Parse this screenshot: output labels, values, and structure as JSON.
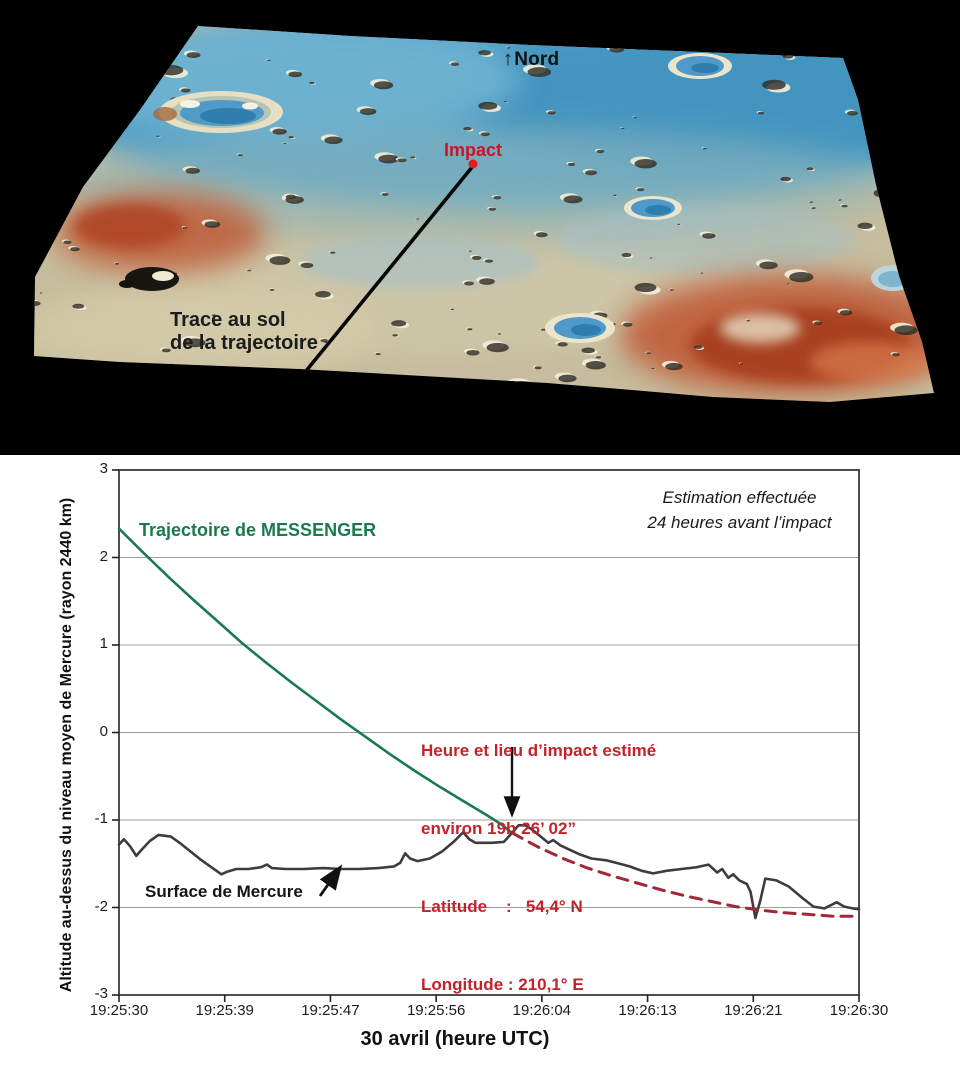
{
  "terrain": {
    "nord_arrow": "↑",
    "nord_label": "Nord",
    "impact_label": "Impact",
    "trace_line1": "Trace au sol",
    "trace_line2": "de la trajectoire",
    "colors": {
      "background": "#000000",
      "plains_blue": "#57a2c7",
      "highlands_tan": "#c6bd9e",
      "ridge_red": "#c05c39",
      "crater_floor_blue": "#4f9ac8",
      "impact_marker_red": "#e31b1b",
      "ground_track_black": "#050505"
    }
  },
  "chart_data": {
    "type": "line",
    "title": "",
    "xlabel": "30 avril (heure UTC)",
    "ylabel": "Altitude au-dessus du niveau moyen de Mercure (rayon 2440 km)",
    "x_tick_labels": [
      "19:25:30",
      "19:25:39",
      "19:25:47",
      "19:25:56",
      "19:26:04",
      "19:26:13",
      "19:26:21",
      "19:26:30"
    ],
    "x_range_seconds": [
      0,
      60
    ],
    "ylim": [
      -3,
      3
    ],
    "y_ticks": [
      3,
      2,
      1,
      0,
      -1,
      -2,
      -3
    ],
    "grid_values": [
      2,
      1,
      0,
      -1,
      -2
    ],
    "grid_color": "#9f9f9f",
    "legend_position": "none",
    "series": [
      {
        "id": "trajectoire-messenger",
        "color": "#1a7a4f",
        "style": "solid",
        "width": 2.6,
        "points": [
          [
            0,
            2.33
          ],
          [
            2,
            2.05
          ],
          [
            4,
            1.78
          ],
          [
            6,
            1.52
          ],
          [
            8,
            1.27
          ],
          [
            10,
            1.02
          ],
          [
            12,
            0.79
          ],
          [
            14,
            0.57
          ],
          [
            16,
            0.36
          ],
          [
            18,
            0.15
          ],
          [
            20,
            -0.05
          ],
          [
            22,
            -0.25
          ],
          [
            24,
            -0.44
          ],
          [
            26,
            -0.62
          ],
          [
            28,
            -0.79
          ],
          [
            30,
            -0.96
          ],
          [
            31,
            -1.05
          ],
          [
            31.9,
            -1.15
          ]
        ]
      },
      {
        "id": "surface-mercure",
        "color": "#3d3d3f",
        "style": "solid",
        "width": 2.6,
        "points": [
          [
            0,
            -1.28
          ],
          [
            0.4,
            -1.22
          ],
          [
            0.9,
            -1.3
          ],
          [
            1.4,
            -1.41
          ],
          [
            1.9,
            -1.33
          ],
          [
            2.5,
            -1.24
          ],
          [
            3.2,
            -1.17
          ],
          [
            4.2,
            -1.19
          ],
          [
            5,
            -1.27
          ],
          [
            5.8,
            -1.36
          ],
          [
            6.6,
            -1.45
          ],
          [
            7.5,
            -1.54
          ],
          [
            8.3,
            -1.62
          ],
          [
            8.8,
            -1.59
          ],
          [
            9.5,
            -1.56
          ],
          [
            10.5,
            -1.56
          ],
          [
            11.5,
            -1.54
          ],
          [
            12,
            -1.51
          ],
          [
            12.4,
            -1.55
          ],
          [
            13.5,
            -1.56
          ],
          [
            15,
            -1.56
          ],
          [
            16.5,
            -1.55
          ],
          [
            18,
            -1.56
          ],
          [
            19.5,
            -1.56
          ],
          [
            21,
            -1.55
          ],
          [
            22.3,
            -1.53
          ],
          [
            22.8,
            -1.49
          ],
          [
            23.2,
            -1.38
          ],
          [
            23.6,
            -1.44
          ],
          [
            24.2,
            -1.47
          ],
          [
            25.2,
            -1.44
          ],
          [
            26.2,
            -1.36
          ],
          [
            27.2,
            -1.24
          ],
          [
            27.9,
            -1.14
          ],
          [
            28.4,
            -1.22
          ],
          [
            28.9,
            -1.26
          ],
          [
            30.2,
            -1.26
          ],
          [
            31.2,
            -1.25
          ],
          [
            31.6,
            -1.19
          ],
          [
            31.9,
            -1.14
          ],
          [
            32.4,
            -1.06
          ],
          [
            32.9,
            -1.06
          ],
          [
            33.4,
            -1.1
          ],
          [
            34.2,
            -1.19
          ],
          [
            34.8,
            -1.26
          ],
          [
            35.2,
            -1.23
          ],
          [
            35.8,
            -1.29
          ],
          [
            36.4,
            -1.33
          ],
          [
            37.3,
            -1.39
          ],
          [
            38.3,
            -1.44
          ],
          [
            39.5,
            -1.46
          ],
          [
            40.6,
            -1.5
          ],
          [
            41.4,
            -1.53
          ],
          [
            42.4,
            -1.58
          ],
          [
            43.3,
            -1.61
          ],
          [
            44.4,
            -1.58
          ],
          [
            45.6,
            -1.56
          ],
          [
            46.8,
            -1.54
          ],
          [
            47.8,
            -1.51
          ],
          [
            48.5,
            -1.6
          ],
          [
            48.9,
            -1.56
          ],
          [
            49.4,
            -1.66
          ],
          [
            49.8,
            -1.62
          ],
          [
            50.3,
            -1.69
          ],
          [
            50.9,
            -1.73
          ],
          [
            51.2,
            -1.82
          ],
          [
            51.6,
            -2.12
          ],
          [
            52,
            -1.92
          ],
          [
            52.4,
            -1.67
          ],
          [
            53.3,
            -1.69
          ],
          [
            54.3,
            -1.76
          ],
          [
            55.4,
            -1.89
          ],
          [
            56.3,
            -1.99
          ],
          [
            57.2,
            -2.01
          ],
          [
            58.2,
            -1.94
          ],
          [
            58.8,
            -1.99
          ],
          [
            59.5,
            -2.01
          ],
          [
            60,
            -2.02
          ]
        ]
      },
      {
        "id": "trajectoire-estimee-apres-impact",
        "color": "#a22735",
        "style": "dashed",
        "width": 3,
        "points": [
          [
            31.9,
            -1.15
          ],
          [
            34,
            -1.31
          ],
          [
            36,
            -1.44
          ],
          [
            38,
            -1.55
          ],
          [
            40,
            -1.64
          ],
          [
            42,
            -1.72
          ],
          [
            44,
            -1.8
          ],
          [
            46,
            -1.87
          ],
          [
            48,
            -1.93
          ],
          [
            50,
            -1.99
          ],
          [
            52,
            -2.03
          ],
          [
            54,
            -2.06
          ],
          [
            56,
            -2.08
          ],
          [
            58,
            -2.1
          ],
          [
            60,
            -2.1
          ]
        ]
      }
    ],
    "annotations": {
      "note_line1": "Estimation effectuée",
      "note_line2": "24 heures avant l’impact",
      "trajectory_label": "Trajectoire de MESSENGER",
      "surface_label": "Surface de Mercure",
      "impact_line1": "Heure et lieu d’impact estimé",
      "impact_line2": "environ 19h 26’ 02”",
      "impact_line3": "Latitude    :   54,4° N",
      "impact_line4": "Longitude : 210,1° E",
      "annotation_red": "#c2232b",
      "trajectory_green": "#1a7a4f"
    }
  }
}
